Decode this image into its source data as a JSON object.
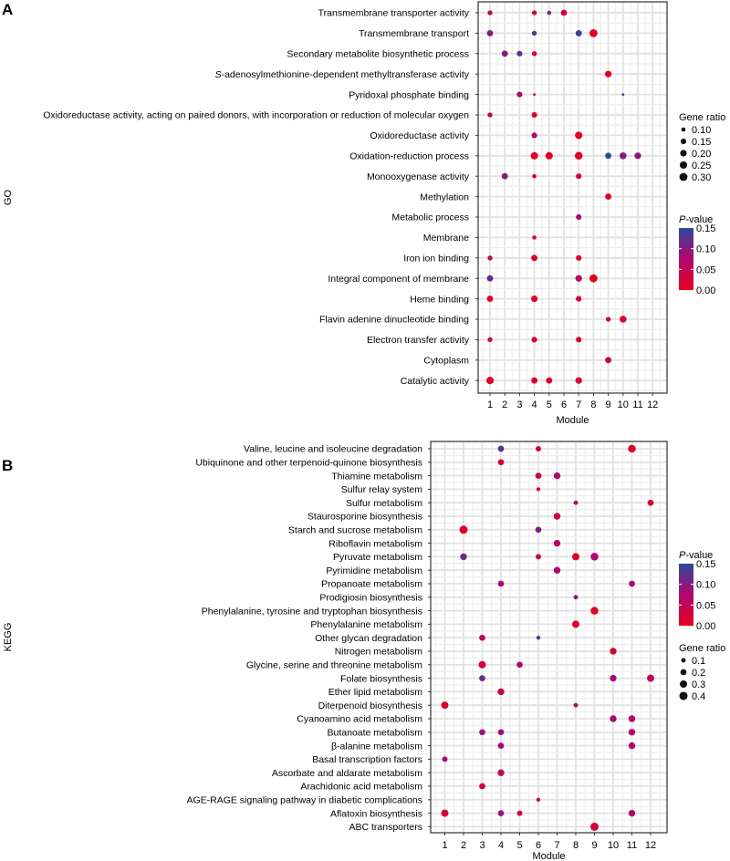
{
  "chart_data": [
    {
      "panel": "A",
      "type": "scatter",
      "subtype": "bubble-dotplot",
      "xlabel": "Module",
      "ylabel": "GO",
      "x_ticks": [
        "1",
        "2",
        "3",
        "4",
        "5",
        "6",
        "7",
        "8",
        "9",
        "10",
        "11",
        "12"
      ],
      "grid": true,
      "legend": {
        "size_title": "Gene ratio",
        "size_values": [
          "0.10",
          "0.15",
          "0.20",
          "0.25",
          "0.30"
        ],
        "color_title_italic": "P",
        "color_title_rest": "-value",
        "color_ticks": [
          "0.15",
          "0.10",
          "0.05",
          "0.00"
        ],
        "color_range": [
          0,
          0.15
        ],
        "color_low": "#e8001c",
        "color_mid": "#b00670",
        "color_high": "#2c4a9c",
        "placement": "right"
      },
      "size_range": [
        0.08,
        0.3
      ],
      "categories": [
        {
          "label": "Transmembrane transporter activity",
          "points": [
            {
              "module": 1,
              "ratio": 0.12,
              "p": 0.04
            },
            {
              "module": 4,
              "ratio": 0.12,
              "p": 0.02
            },
            {
              "module": 5,
              "ratio": 0.1,
              "p": 0.1
            },
            {
              "module": 6,
              "ratio": 0.18,
              "p": 0.03
            }
          ]
        },
        {
          "label": "Transmembrane transport",
          "points": [
            {
              "module": 1,
              "ratio": 0.18,
              "p": 0.1
            },
            {
              "module": 4,
              "ratio": 0.12,
              "p": 0.13
            },
            {
              "module": 7,
              "ratio": 0.18,
              "p": 0.14
            },
            {
              "module": 8,
              "ratio": 0.3,
              "p": 0.01
            }
          ]
        },
        {
          "label": "Secondary metabolite biosynthetic process",
          "points": [
            {
              "module": 2,
              "ratio": 0.18,
              "p": 0.1
            },
            {
              "module": 3,
              "ratio": 0.15,
              "p": 0.12
            },
            {
              "module": 4,
              "ratio": 0.12,
              "p": 0.02
            }
          ]
        },
        {
          "label": "S-adenosylmethionine-dependent methyltransferase activity",
          "italic_prefix": "S",
          "rest": "-adenosylmethionine-dependent methyltransferase activity",
          "points": [
            {
              "module": 9,
              "ratio": 0.2,
              "p": 0.01
            }
          ]
        },
        {
          "label": "Pyridoxal phosphate binding",
          "points": [
            {
              "module": 3,
              "ratio": 0.15,
              "p": 0.08
            },
            {
              "module": 4,
              "ratio": 0.08,
              "p": 0.02
            },
            {
              "module": 10,
              "ratio": 0.08,
              "p": 0.14
            }
          ]
        },
        {
          "label": "Oxidoreductase activity, acting on paired donors, with incorporation or reduction of molecular oxygen",
          "points": [
            {
              "module": 1,
              "ratio": 0.12,
              "p": 0.03
            },
            {
              "module": 4,
              "ratio": 0.15,
              "p": 0.01
            }
          ]
        },
        {
          "label": "Oxidoreductase activity",
          "points": [
            {
              "module": 4,
              "ratio": 0.15,
              "p": 0.07
            },
            {
              "module": 7,
              "ratio": 0.25,
              "p": 0.01
            }
          ]
        },
        {
          "label": "Oxidation-reduction process",
          "points": [
            {
              "module": 4,
              "ratio": 0.25,
              "p": 0.01
            },
            {
              "module": 5,
              "ratio": 0.25,
              "p": 0.01
            },
            {
              "module": 7,
              "ratio": 0.28,
              "p": 0.01
            },
            {
              "module": 9,
              "ratio": 0.18,
              "p": 0.15
            },
            {
              "module": 10,
              "ratio": 0.22,
              "p": 0.1
            },
            {
              "module": 11,
              "ratio": 0.2,
              "p": 0.09
            }
          ]
        },
        {
          "label": "Monooxygenase activity",
          "points": [
            {
              "module": 2,
              "ratio": 0.18,
              "p": 0.1
            },
            {
              "module": 4,
              "ratio": 0.1,
              "p": 0.02
            },
            {
              "module": 7,
              "ratio": 0.15,
              "p": 0.02
            }
          ]
        },
        {
          "label": "Methylation",
          "points": [
            {
              "module": 9,
              "ratio": 0.18,
              "p": 0.01
            }
          ]
        },
        {
          "label": "Metabolic process",
          "points": [
            {
              "module": 7,
              "ratio": 0.15,
              "p": 0.07
            }
          ]
        },
        {
          "label": "Membrane",
          "points": [
            {
              "module": 4,
              "ratio": 0.1,
              "p": 0.02
            }
          ]
        },
        {
          "label": "Iron ion binding",
          "points": [
            {
              "module": 1,
              "ratio": 0.12,
              "p": 0.05
            },
            {
              "module": 4,
              "ratio": 0.18,
              "p": 0.01
            },
            {
              "module": 7,
              "ratio": 0.15,
              "p": 0.02
            }
          ]
        },
        {
          "label": "Integral component of membrane",
          "points": [
            {
              "module": 1,
              "ratio": 0.18,
              "p": 0.12
            },
            {
              "module": 7,
              "ratio": 0.2,
              "p": 0.06
            },
            {
              "module": 8,
              "ratio": 0.3,
              "p": 0.01
            }
          ]
        },
        {
          "label": "Heme binding",
          "points": [
            {
              "module": 1,
              "ratio": 0.18,
              "p": 0.01
            },
            {
              "module": 4,
              "ratio": 0.2,
              "p": 0.01
            },
            {
              "module": 7,
              "ratio": 0.15,
              "p": 0.02
            }
          ]
        },
        {
          "label": "Flavin adenine dinucleotide binding",
          "points": [
            {
              "module": 9,
              "ratio": 0.12,
              "p": 0.04
            },
            {
              "module": 10,
              "ratio": 0.22,
              "p": 0.01
            }
          ]
        },
        {
          "label": "Electron transfer activity",
          "points": [
            {
              "module": 1,
              "ratio": 0.12,
              "p": 0.03
            },
            {
              "module": 4,
              "ratio": 0.15,
              "p": 0.02
            },
            {
              "module": 7,
              "ratio": 0.15,
              "p": 0.02
            }
          ]
        },
        {
          "label": "Cytoplasm",
          "points": [
            {
              "module": 9,
              "ratio": 0.18,
              "p": 0.04
            }
          ]
        },
        {
          "label": "Catalytic activity",
          "points": [
            {
              "module": 1,
              "ratio": 0.25,
              "p": 0.01
            },
            {
              "module": 4,
              "ratio": 0.18,
              "p": 0.01
            },
            {
              "module": 5,
              "ratio": 0.18,
              "p": 0.02
            },
            {
              "module": 7,
              "ratio": 0.2,
              "p": 0.02
            }
          ]
        }
      ]
    },
    {
      "panel": "B",
      "type": "scatter",
      "subtype": "bubble-dotplot",
      "xlabel": "Module",
      "ylabel": "KEGG",
      "x_ticks": [
        "1",
        "2",
        "3",
        "4",
        "5",
        "6",
        "7",
        "8",
        "9",
        "10",
        "11",
        "12"
      ],
      "grid": true,
      "legend": {
        "size_title": "Gene ratio",
        "size_values": [
          "0.1",
          "0.2",
          "0.3",
          "0.4"
        ],
        "color_title_italic": "P",
        "color_title_rest": "-value",
        "color_ticks": [
          "0.15",
          "0.10",
          "0.05",
          "0.00"
        ],
        "color_range": [
          0,
          0.15
        ],
        "color_low": "#e8001c",
        "color_mid": "#b00670",
        "color_high": "#2c4a9c",
        "placement": "right"
      },
      "size_range": [
        0.05,
        0.42
      ],
      "categories": [
        {
          "label": "Valine, leucine and isoleucine degradation",
          "points": [
            {
              "module": 4,
              "ratio": 0.2,
              "p": 0.13
            },
            {
              "module": 6,
              "ratio": 0.15,
              "p": 0.04
            },
            {
              "module": 11,
              "ratio": 0.35,
              "p": 0.01
            }
          ]
        },
        {
          "label": "Ubiquinone and other terpenoid-quinone biosynthesis",
          "points": [
            {
              "module": 4,
              "ratio": 0.2,
              "p": 0.03
            }
          ]
        },
        {
          "label": "Thiamine metabolism",
          "points": [
            {
              "module": 6,
              "ratio": 0.2,
              "p": 0.04
            },
            {
              "module": 7,
              "ratio": 0.25,
              "p": 0.07
            }
          ]
        },
        {
          "label": "Sulfur relay system",
          "points": [
            {
              "module": 6,
              "ratio": 0.08,
              "p": 0.03
            }
          ]
        },
        {
          "label": "Sulfur metabolism",
          "points": [
            {
              "module": 8,
              "ratio": 0.1,
              "p": 0.08
            },
            {
              "module": 12,
              "ratio": 0.2,
              "p": 0.02
            }
          ]
        },
        {
          "label": "Staurosporine biosynthesis",
          "points": [
            {
              "module": 7,
              "ratio": 0.25,
              "p": 0.04
            }
          ]
        },
        {
          "label": "Starch and sucrose metabolism",
          "points": [
            {
              "module": 2,
              "ratio": 0.4,
              "p": 0.01
            },
            {
              "module": 6,
              "ratio": 0.2,
              "p": 0.1
            }
          ]
        },
        {
          "label": "Riboflavin metabolism",
          "points": [
            {
              "module": 7,
              "ratio": 0.25,
              "p": 0.07
            }
          ]
        },
        {
          "label": "Pyruvate metabolism",
          "points": [
            {
              "module": 2,
              "ratio": 0.25,
              "p": 0.11
            },
            {
              "module": 6,
              "ratio": 0.15,
              "p": 0.05
            },
            {
              "module": 8,
              "ratio": 0.3,
              "p": 0.01
            },
            {
              "module": 9,
              "ratio": 0.35,
              "p": 0.07
            }
          ]
        },
        {
          "label": "Pyrimidine metabolism",
          "points": [
            {
              "module": 7,
              "ratio": 0.25,
              "p": 0.07
            }
          ]
        },
        {
          "label": "Propanoate metabolism",
          "points": [
            {
              "module": 4,
              "ratio": 0.2,
              "p": 0.08
            },
            {
              "module": 11,
              "ratio": 0.2,
              "p": 0.08
            }
          ]
        },
        {
          "label": "Prodigiosin biosynthesis",
          "points": [
            {
              "module": 8,
              "ratio": 0.1,
              "p": 0.09
            }
          ]
        },
        {
          "label": "Phenylalanine, tyrosine and tryptophan biosynthesis",
          "points": [
            {
              "module": 9,
              "ratio": 0.35,
              "p": 0.01
            }
          ]
        },
        {
          "label": "Phenylalanine metabolism",
          "points": [
            {
              "module": 8,
              "ratio": 0.3,
              "p": 0.01
            }
          ]
        },
        {
          "label": "Other glycan degradation",
          "points": [
            {
              "module": 3,
              "ratio": 0.2,
              "p": 0.06
            },
            {
              "module": 6,
              "ratio": 0.08,
              "p": 0.13
            }
          ]
        },
        {
          "label": "Nitrogen metabolism",
          "points": [
            {
              "module": 10,
              "ratio": 0.25,
              "p": 0.02
            }
          ]
        },
        {
          "label": "Glycine, serine and threonine metabolism",
          "points": [
            {
              "module": 3,
              "ratio": 0.3,
              "p": 0.03
            },
            {
              "module": 5,
              "ratio": 0.2,
              "p": 0.07
            }
          ]
        },
        {
          "label": "Folate biosynthesis",
          "points": [
            {
              "module": 3,
              "ratio": 0.2,
              "p": 0.12
            },
            {
              "module": 10,
              "ratio": 0.25,
              "p": 0.08
            },
            {
              "module": 12,
              "ratio": 0.3,
              "p": 0.06
            }
          ]
        },
        {
          "label": "Ether lipid metabolism",
          "points": [
            {
              "module": 4,
              "ratio": 0.25,
              "p": 0.04
            }
          ]
        },
        {
          "label": "Diterpenoid biosynthesis",
          "points": [
            {
              "module": 1,
              "ratio": 0.3,
              "p": 0.01
            },
            {
              "module": 8,
              "ratio": 0.1,
              "p": 0.07
            }
          ]
        },
        {
          "label": "Cyanoamino acid metabolism",
          "points": [
            {
              "module": 10,
              "ratio": 0.25,
              "p": 0.08
            },
            {
              "module": 11,
              "ratio": 0.25,
              "p": 0.07
            }
          ]
        },
        {
          "label": "Butanoate metabolism",
          "points": [
            {
              "module": 3,
              "ratio": 0.2,
              "p": 0.09
            },
            {
              "module": 4,
              "ratio": 0.2,
              "p": 0.08
            },
            {
              "module": 11,
              "ratio": 0.25,
              "p": 0.07
            }
          ]
        },
        {
          "label": "β-alanine metabolism",
          "points": [
            {
              "module": 4,
              "ratio": 0.2,
              "p": 0.08
            },
            {
              "module": 11,
              "ratio": 0.25,
              "p": 0.07
            }
          ]
        },
        {
          "label": "Basal transcription factors",
          "points": [
            {
              "module": 1,
              "ratio": 0.15,
              "p": 0.07
            }
          ]
        },
        {
          "label": "Ascorbate and aldarate metabolism",
          "points": [
            {
              "module": 4,
              "ratio": 0.25,
              "p": 0.05
            }
          ]
        },
        {
          "label": "Arachidonic acid metabolism",
          "points": [
            {
              "module": 3,
              "ratio": 0.2,
              "p": 0.03
            }
          ]
        },
        {
          "label": "AGE-RAGE signaling pathway in diabetic complications",
          "points": [
            {
              "module": 6,
              "ratio": 0.08,
              "p": 0.04
            }
          ]
        },
        {
          "label": "Aflatoxin biosynthesis",
          "points": [
            {
              "module": 1,
              "ratio": 0.3,
              "p": 0.02
            },
            {
              "module": 4,
              "ratio": 0.2,
              "p": 0.09
            },
            {
              "module": 5,
              "ratio": 0.15,
              "p": 0.04
            },
            {
              "module": 11,
              "ratio": 0.25,
              "p": 0.07
            }
          ]
        },
        {
          "label": "ABC transporters",
          "points": [
            {
              "module": 9,
              "ratio": 0.4,
              "p": 0.03
            }
          ]
        }
      ]
    }
  ],
  "panels": {
    "a_letter": "A",
    "b_letter": "B"
  }
}
